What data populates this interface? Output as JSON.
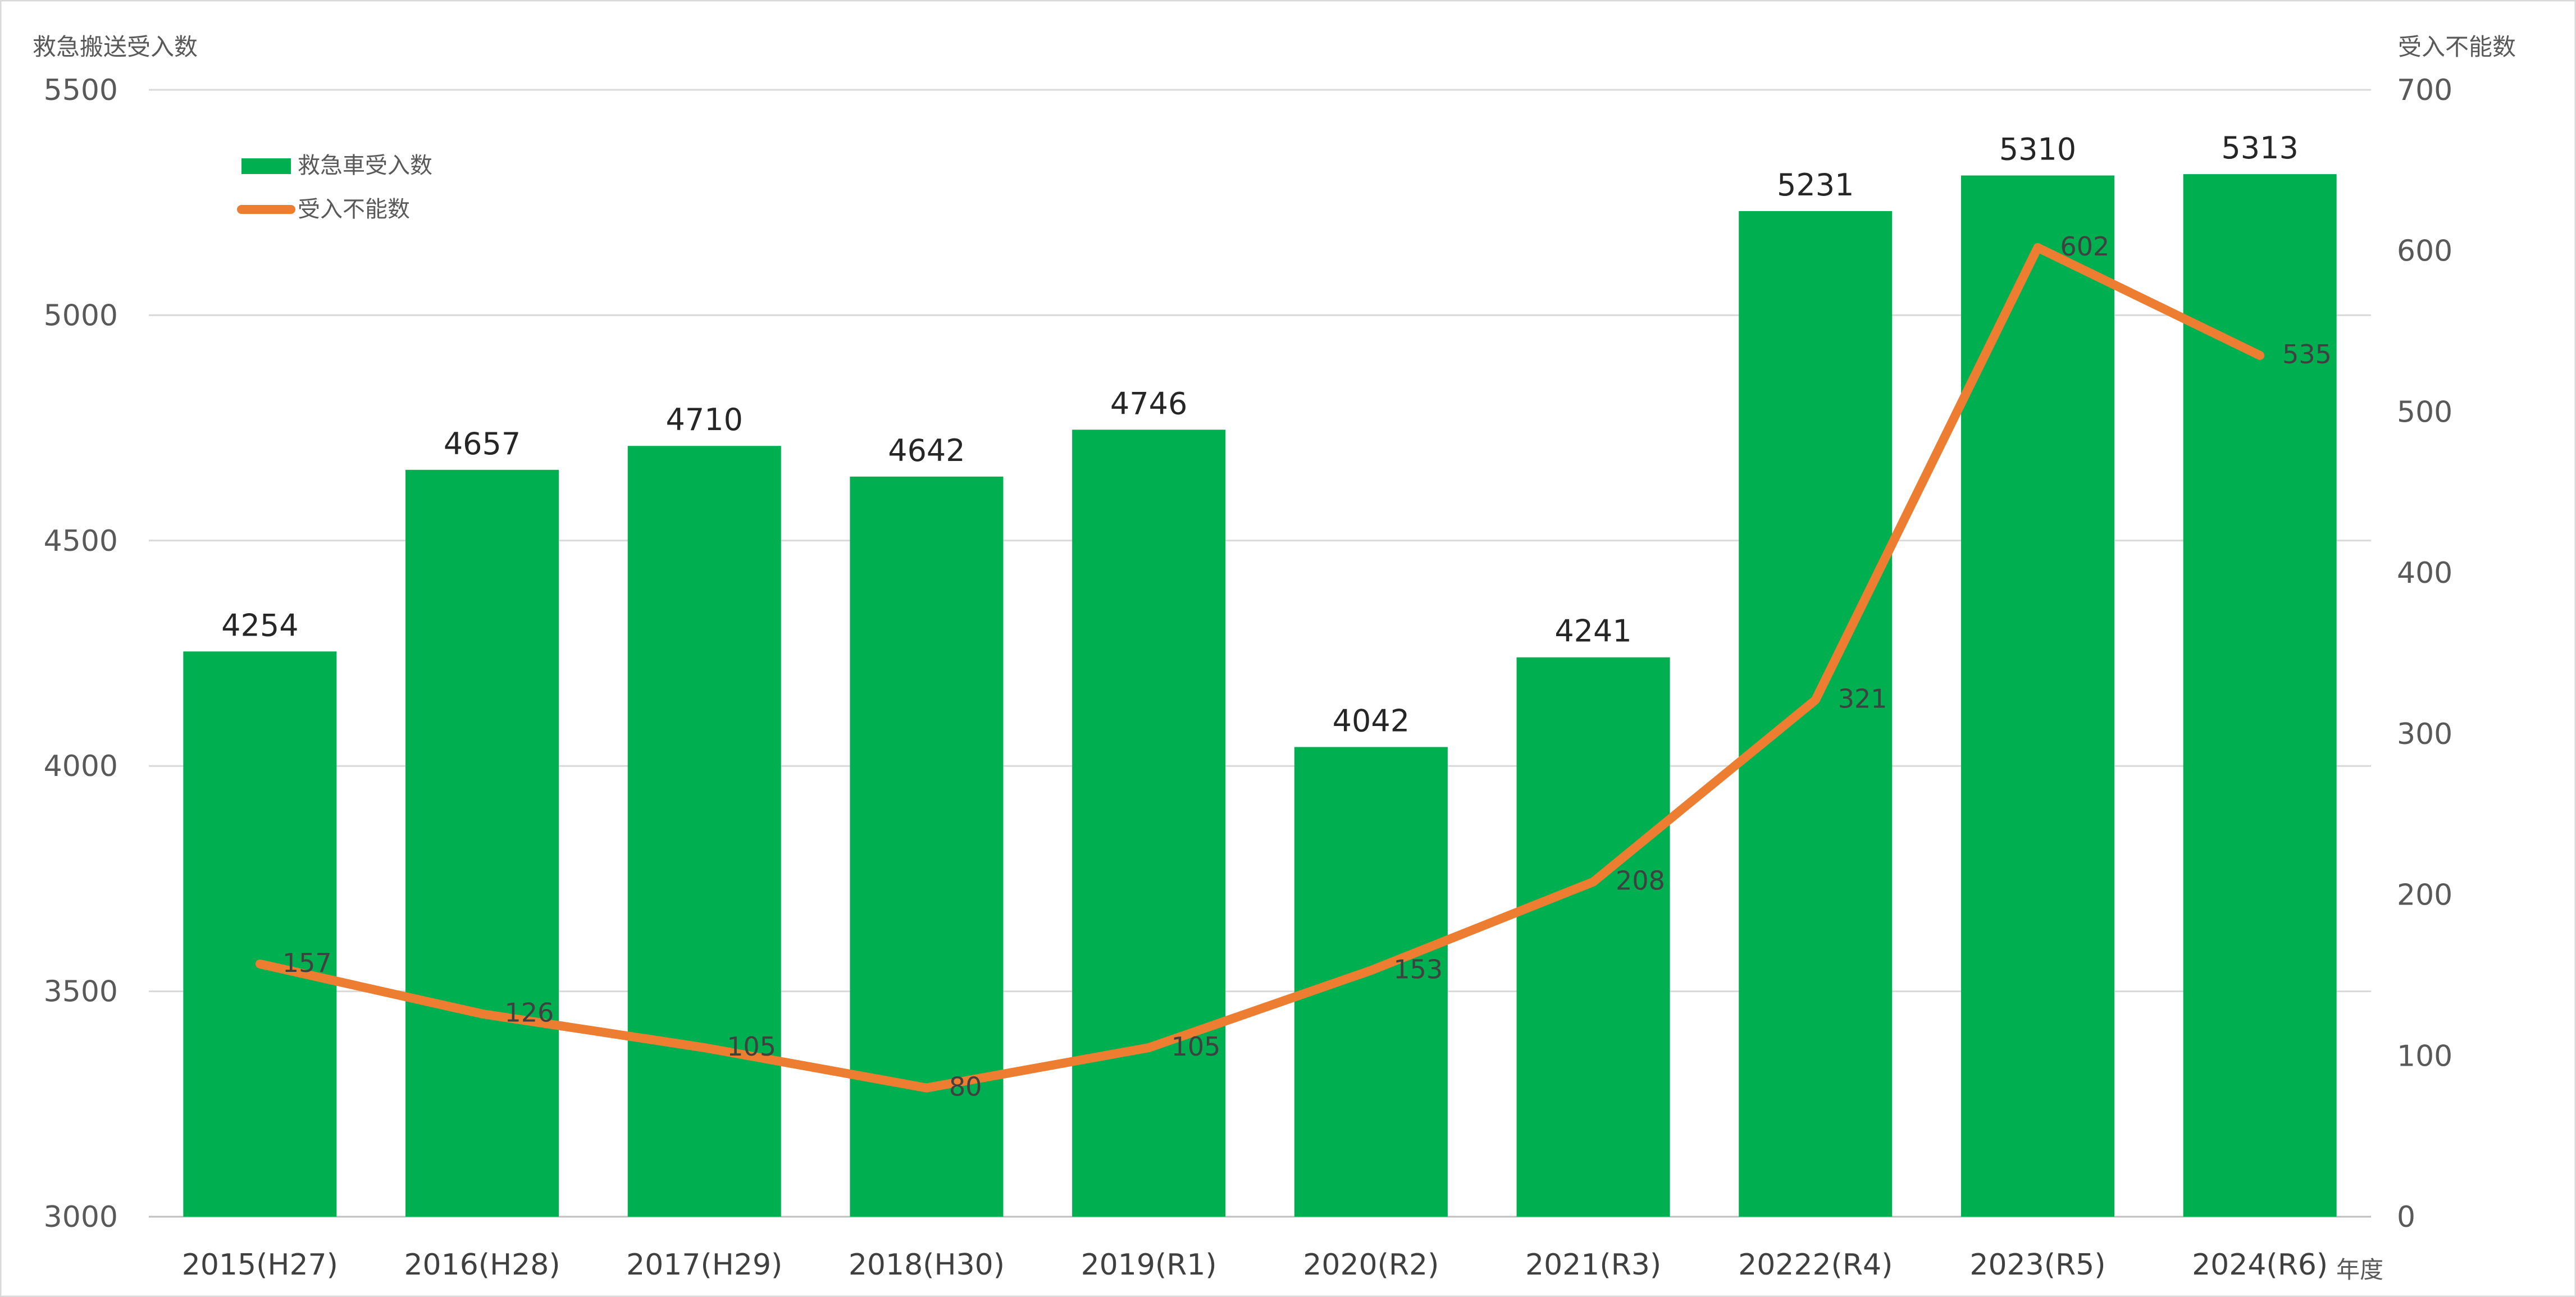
{
  "chart_data": {
    "type": "bar",
    "combo": "bar + line (secondary axis)",
    "categories": [
      "2015(H27)",
      "2016(H28)",
      "2017(H29)",
      "2018(H30)",
      "2019(R1)",
      "2020(R2)",
      "2021(R3)",
      "20222(R4)",
      "2023(R5)",
      "2024(R6)"
    ],
    "xlabel": "年度",
    "ylabel": "救急搬送受入数",
    "y2label": "受入不能数",
    "ylim": [
      3000,
      5500
    ],
    "y2lim": [
      0,
      700
    ],
    "yticks": [
      3000,
      3500,
      4000,
      4500,
      5000,
      5500
    ],
    "y2ticks": [
      0,
      100,
      200,
      300,
      400,
      500,
      600,
      700
    ],
    "grid": true,
    "legend_position": "top-left",
    "series": [
      {
        "name": "救急車受入数",
        "type": "bar",
        "axis": "left",
        "color": "#00B050",
        "values": [
          4254,
          4657,
          4710,
          4642,
          4746,
          4042,
          4241,
          5231,
          5310,
          5313
        ]
      },
      {
        "name": "受入不能数",
        "type": "line",
        "axis": "right",
        "color": "#ED7D31",
        "values": [
          157,
          126,
          105,
          80,
          105,
          153,
          208,
          321,
          602,
          535
        ]
      }
    ]
  }
}
